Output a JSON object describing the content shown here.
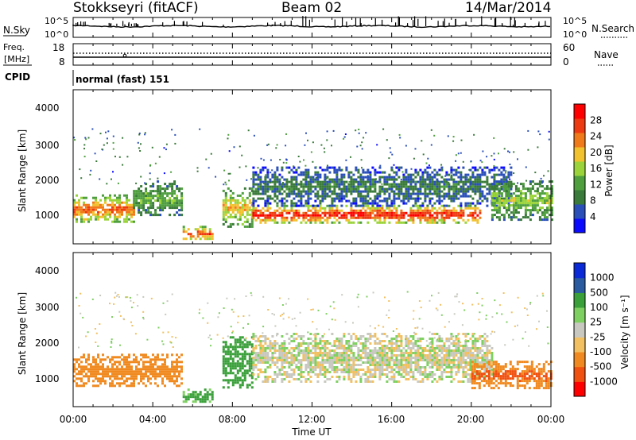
{
  "header": {
    "station": "Stokkseyri (fitACF)",
    "beam": "Beam 02",
    "date": "14/Mar/2014"
  },
  "strip_panels": {
    "nsky": {
      "label": "N.Sky",
      "left_ticks": [
        "10^5",
        "10^0"
      ],
      "right_ticks": [
        "10^5",
        "10^0"
      ],
      "right_label": "N.Search"
    },
    "freq": {
      "label_line1": "Freq.",
      "label_line2": "[MHz]",
      "left_ticks": [
        "18",
        "8"
      ],
      "right_ticks": [
        "60",
        "0"
      ],
      "right_label": "Nave"
    },
    "cpid": {
      "label": "CPID",
      "text": "normal (fast) 151"
    }
  },
  "x_axis": {
    "label": "Time UT",
    "ticks": [
      "00:00",
      "04:00",
      "08:00",
      "12:00",
      "16:00",
      "20:00",
      "00:00"
    ]
  },
  "panels": [
    {
      "id": "power",
      "ylabel": "Slant Range [km]",
      "yticks": [
        "4000",
        "3000",
        "2000",
        "1000"
      ],
      "colorbar": {
        "label": "Power [dB]",
        "ticks": [
          "28",
          "24",
          "20",
          "16",
          "12",
          "8",
          "4"
        ],
        "colors": [
          "#0a0aff",
          "#2a4fb8",
          "#3a7a3a",
          "#4f9f3f",
          "#9ad43a",
          "#f2c12e",
          "#f07a1a",
          "#ee3a10",
          "#ff0000"
        ]
      }
    },
    {
      "id": "velocity",
      "ylabel": "Slant Range [km]",
      "yticks": [
        "4000",
        "3000",
        "2000",
        "1000"
      ],
      "colorbar": {
        "label": "Velocity [m s⁻¹]",
        "ticks": [
          "1000",
          "500",
          "100",
          "25",
          "-25",
          "-100",
          "-500",
          "-1000"
        ],
        "colors": [
          "#ff0000",
          "#f05010",
          "#f08a20",
          "#f2c060",
          "#c8c8c0",
          "#7ed060",
          "#3aa03a",
          "#2a5aa0",
          "#0a2ad8"
        ]
      }
    }
  ],
  "chart_data": [
    {
      "type": "heatmap",
      "title": "Power",
      "x_range_hours": [
        0,
        24
      ],
      "y_range_km": [
        180,
        4600
      ],
      "color_range_dB": [
        0,
        32
      ],
      "features": [
        {
          "time": "00:00-03:00",
          "range_km": [
            800,
            1600
          ],
          "value_dB": 22
        },
        {
          "time": "03:00-05:30",
          "range_km": [
            1000,
            2000
          ],
          "value_dB": 12
        },
        {
          "time": "05:30-07:00",
          "range_km": [
            300,
            700
          ],
          "value_dB": 24
        },
        {
          "time": "07:30-09:00",
          "range_km": [
            700,
            1800
          ],
          "value_dB": 18
        },
        {
          "time": "09:00-20:30",
          "range_km": [
            800,
            1300
          ],
          "value_dB": 26
        },
        {
          "time": "09:00-22:00",
          "range_km": [
            1300,
            2400
          ],
          "value_dB": 8
        },
        {
          "time": "21:00-24:00",
          "range_km": [
            900,
            2000
          ],
          "value_dB": 14
        }
      ]
    },
    {
      "type": "heatmap",
      "title": "Velocity",
      "x_range_hours": [
        0,
        24
      ],
      "y_range_km": [
        180,
        4600
      ],
      "color_range_ms": [
        -1000,
        1000
      ],
      "features": [
        {
          "time": "00:00-05:30",
          "range_km": [
            800,
            1700
          ],
          "value_ms": -300
        },
        {
          "time": "05:30-07:00",
          "range_km": [
            300,
            700
          ],
          "value_ms": 150
        },
        {
          "time": "07:30-09:00",
          "range_km": [
            700,
            2200
          ],
          "value_ms": 300
        },
        {
          "time": "09:00-21:00",
          "range_km": [
            900,
            2300
          ],
          "value_ms": 0
        },
        {
          "time": "20:00-24:00",
          "range_km": [
            700,
            1500
          ],
          "value_ms": -500
        }
      ]
    }
  ]
}
